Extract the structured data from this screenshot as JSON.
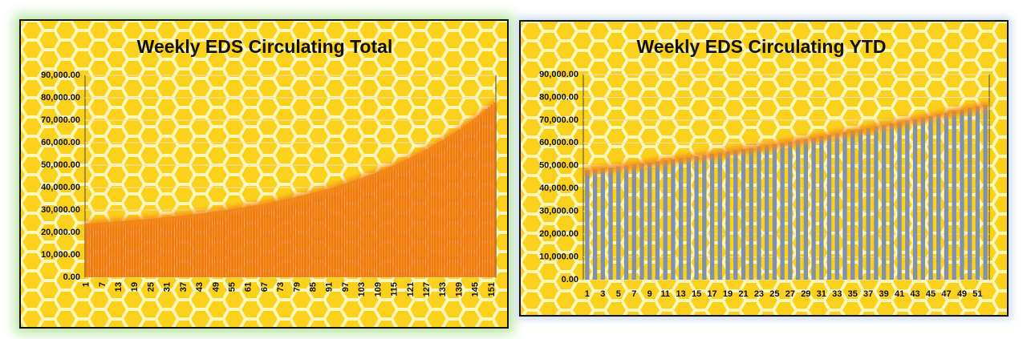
{
  "chart_data": [
    {
      "type": "bar",
      "title": "Weekly EDS Circulating Total",
      "color": "#f07a18",
      "grid": true,
      "categories": [
        "1",
        null,
        null,
        null,
        null,
        null,
        "7",
        null,
        null,
        null,
        null,
        null,
        "13",
        null,
        null,
        null,
        null,
        null,
        "19",
        null,
        null,
        null,
        null,
        null,
        "25",
        null,
        null,
        null,
        null,
        null,
        "31",
        null,
        null,
        null,
        null,
        null,
        "37",
        null,
        null,
        null,
        null,
        null,
        "43",
        null,
        null,
        null,
        null,
        null,
        "49",
        null,
        null,
        null,
        null,
        null,
        "55",
        null,
        null,
        null,
        null,
        null,
        "61",
        null,
        null,
        null,
        null,
        null,
        "67",
        null,
        null,
        null,
        null,
        null,
        "73",
        null,
        null,
        null,
        null,
        null,
        "79",
        null,
        null,
        null,
        null,
        null,
        "85",
        null,
        null,
        null,
        null,
        null,
        "91",
        null,
        null,
        null,
        null,
        null,
        "97",
        null,
        null,
        null,
        null,
        null,
        "103",
        null,
        null,
        null,
        null,
        null,
        "109",
        null,
        null,
        null,
        null,
        null,
        "115",
        null,
        null,
        null,
        null,
        null,
        "121",
        null,
        null,
        null,
        null,
        null,
        "127",
        null,
        null,
        null,
        null,
        null,
        "133",
        null,
        null,
        null,
        null,
        null,
        "139",
        null,
        null,
        null,
        null,
        null,
        "145",
        null,
        null,
        null,
        null,
        null,
        "151",
        null
      ],
      "values": [
        24000,
        24100,
        24100,
        24200,
        24300,
        24400,
        24400,
        24500,
        24600,
        24700,
        24800,
        24900,
        24900,
        25000,
        25100,
        25200,
        25300,
        25400,
        25500,
        25600,
        25700,
        25800,
        25900,
        26000,
        26100,
        26200,
        26300,
        26500,
        26600,
        26700,
        26800,
        26900,
        27100,
        27200,
        27300,
        27400,
        27600,
        27700,
        27800,
        28000,
        28100,
        28300,
        28400,
        28600,
        28700,
        28900,
        29000,
        29200,
        29400,
        29500,
        29700,
        29900,
        30000,
        30200,
        30400,
        30600,
        30800,
        31000,
        31200,
        31400,
        31600,
        31800,
        32000,
        32200,
        32400,
        32600,
        32900,
        33100,
        33300,
        33600,
        33800,
        34100,
        34300,
        34600,
        34800,
        35100,
        35400,
        35600,
        35900,
        36200,
        36500,
        36800,
        37100,
        37400,
        37700,
        38000,
        38300,
        38700,
        39000,
        39300,
        39700,
        40000,
        40400,
        40800,
        41100,
        41500,
        41900,
        42300,
        42700,
        43100,
        43500,
        43900,
        44300,
        44800,
        45200,
        45700,
        46100,
        46600,
        47100,
        47600,
        48000,
        48500,
        49100,
        49600,
        50100,
        50600,
        51200,
        51700,
        52300,
        52900,
        53500,
        54100,
        54700,
        55300,
        55900,
        56600,
        57200,
        57900,
        58600,
        59300,
        60000,
        60700,
        61400,
        62100,
        62900,
        63700,
        64400,
        65200,
        66000,
        66900,
        67700,
        68600,
        69400,
        70300,
        71200,
        72100,
        73000,
        74000,
        75000,
        75900,
        76900,
        78000
      ],
      "ylim": [
        0,
        90000
      ],
      "yticks": [
        {
          "value": 0,
          "label": "0.00"
        },
        {
          "value": 10000,
          "label": "10,000.00"
        },
        {
          "value": 20000,
          "label": "20,000.00"
        },
        {
          "value": 30000,
          "label": "30,000.00"
        },
        {
          "value": 40000,
          "label": "40,000.00"
        },
        {
          "value": 50000,
          "label": "50,000.00"
        },
        {
          "value": 60000,
          "label": "60,000.00"
        },
        {
          "value": 70000,
          "label": "70,000.00"
        },
        {
          "value": 80000,
          "label": "80,000.00"
        },
        {
          "value": 90000,
          "label": "90,000.00"
        }
      ]
    },
    {
      "type": "bar",
      "title": "Weekly EDS Circulating YTD",
      "color": "#8191ab",
      "grid": true,
      "categories": [
        "1",
        null,
        "3",
        null,
        "5",
        null,
        "7",
        null,
        "9",
        null,
        "11",
        null,
        "13",
        null,
        "15",
        null,
        "17",
        null,
        "19",
        null,
        "21",
        null,
        "23",
        null,
        "25",
        null,
        "27",
        null,
        "29",
        null,
        "31",
        null,
        "33",
        null,
        "35",
        null,
        "37",
        null,
        "39",
        null,
        "41",
        null,
        "43",
        null,
        "45",
        null,
        "47",
        null,
        "49",
        null,
        "51",
        null
      ],
      "values": [
        48000,
        48400,
        48800,
        49200,
        49700,
        50100,
        50500,
        51000,
        51400,
        51900,
        52300,
        52800,
        53300,
        53700,
        54200,
        54700,
        55200,
        55700,
        56200,
        56800,
        57300,
        57800,
        58300,
        58900,
        59400,
        60000,
        60600,
        61100,
        61700,
        62300,
        62900,
        63500,
        64100,
        64700,
        65300,
        65900,
        66500,
        67200,
        67800,
        68500,
        69100,
        69800,
        70400,
        71100,
        71800,
        72500,
        73200,
        73900,
        74600,
        75300,
        76000,
        76700
      ],
      "ylim": [
        0,
        90000
      ],
      "yticks": [
        {
          "value": 0,
          "label": "0.00"
        },
        {
          "value": 10000,
          "label": "10,000.00"
        },
        {
          "value": 20000,
          "label": "20,000.00"
        },
        {
          "value": 30000,
          "label": "30,000.00"
        },
        {
          "value": 40000,
          "label": "40,000.00"
        },
        {
          "value": 50000,
          "label": "50,000.00"
        },
        {
          "value": 60000,
          "label": "60,000.00"
        },
        {
          "value": 70000,
          "label": "70,000.00"
        },
        {
          "value": 80000,
          "label": "80,000.00"
        },
        {
          "value": 90000,
          "label": "90,000.00"
        }
      ]
    }
  ]
}
